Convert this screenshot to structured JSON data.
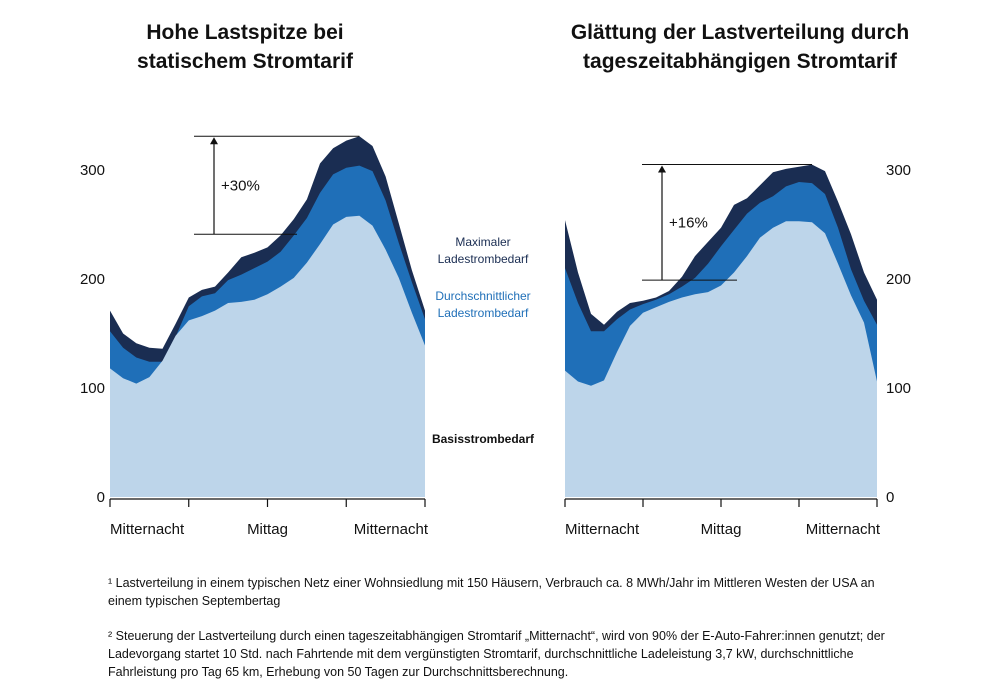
{
  "colors": {
    "base": "#bdd5ea",
    "average": "#1f6fb8",
    "maximum": "#1a2d52"
  },
  "chart_data": [
    {
      "type": "area",
      "title": "Hohe Lastspitze bei\nstatischem Stromtarif",
      "x_tick_labels": [
        "Mitternacht",
        "Mittag",
        "Mitternacht"
      ],
      "y_ticks": [
        0,
        100,
        200,
        300
      ],
      "ylim": [
        0,
        330
      ],
      "annotation": "+30%",
      "x": [
        0,
        1,
        2,
        3,
        4,
        5,
        6,
        7,
        8,
        9,
        10,
        11,
        12,
        13,
        14,
        15,
        16,
        17,
        18,
        19,
        20,
        21,
        22,
        23,
        24
      ],
      "series": [
        {
          "name": "Basisstrombedarf",
          "values": [
            118,
            109,
            104,
            110,
            125,
            148,
            162,
            166,
            171,
            178,
            179,
            181,
            186,
            193,
            201,
            215,
            232,
            250,
            257,
            258,
            249,
            227,
            201,
            169,
            139
          ]
        },
        {
          "name": "Durchschnittlicher Ladestrombedarf",
          "values": [
            152,
            137,
            128,
            124,
            124,
            147,
            175,
            184,
            187,
            199,
            204,
            210,
            216,
            225,
            240,
            256,
            279,
            296,
            302,
            304,
            299,
            272,
            233,
            197,
            163
          ]
        },
        {
          "name": "Maximaler Ladestrombedarf",
          "values": [
            171,
            150,
            141,
            137,
            136,
            159,
            183,
            190,
            193,
            206,
            220,
            224,
            229,
            240,
            255,
            273,
            306,
            320,
            327,
            331,
            322,
            294,
            251,
            208,
            171
          ]
        }
      ]
    },
    {
      "type": "area",
      "title": "Glättung der Lastverteilung durch\ntageszeitabhängigen Stromtarif",
      "x_tick_labels": [
        "Mitternacht",
        "Mittag",
        "Mitternacht"
      ],
      "y_ticks": [
        0,
        100,
        200,
        300
      ],
      "ylim": [
        0,
        330
      ],
      "annotation": "+16%",
      "x": [
        0,
        1,
        2,
        3,
        4,
        5,
        6,
        7,
        8,
        9,
        10,
        11,
        12,
        13,
        14,
        15,
        16,
        17,
        18,
        19,
        20,
        21,
        22,
        23,
        24
      ],
      "series": [
        {
          "name": "Basisstrombedarf",
          "values": [
            116,
            106,
            102,
            107,
            133,
            157,
            169,
            174,
            179,
            183,
            186,
            188,
            194,
            206,
            221,
            238,
            247,
            253,
            253,
            252,
            242,
            214,
            185,
            160,
            106
          ]
        },
        {
          "name": "Durchschnittlicher Ladestrombedarf",
          "values": [
            210,
            178,
            152,
            152,
            163,
            172,
            177,
            181,
            186,
            193,
            201,
            214,
            230,
            245,
            260,
            270,
            276,
            285,
            289,
            288,
            278,
            247,
            209,
            180,
            158
          ]
        },
        {
          "name": "Maximaler Ladestrombedarf",
          "values": [
            254,
            206,
            168,
            158,
            170,
            178,
            180,
            183,
            189,
            202,
            221,
            234,
            247,
            268,
            274,
            286,
            298,
            301,
            303,
            305,
            299,
            271,
            241,
            206,
            181
          ]
        }
      ]
    }
  ],
  "legend": {
    "maximum": "Maximaler\nLadestrombedarf",
    "average": "Durchschnittlicher\nLadestrombedarf",
    "base": "Basisstrombedarf"
  },
  "footnotes": [
    "¹ Lastverteilung in einem typischen Netz einer Wohnsiedlung mit 150 Häusern, Verbrauch ca. 8 MWh/Jahr im Mittleren Westen der USA an einem typischen Septembertag",
    "² Steuerung der Lastverteilung durch einen tageszeitabhängigen Stromtarif „Mitternacht“, wird von 90% der E-Auto-Fahrer:innen genutzt; der Ladevorgang startet 10 Std. nach Fahrtende mit dem vergünstigten Stromtarif,  durchschnittliche Ladeleistung 3,7 kW, durchschnittliche Fahrleistung pro Tag 65 km, Erhebung von 50 Tagen zur Durchschnittsberechnung."
  ]
}
